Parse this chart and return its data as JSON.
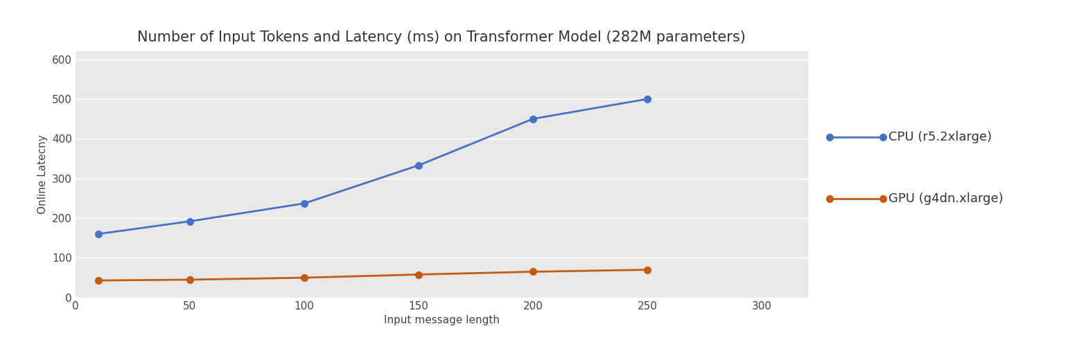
{
  "title": "Number of Input Tokens and Latency (ms) on Transformer Model (282M parameters)",
  "xlabel": "Input message length",
  "ylabel": "Online Latecny",
  "xlim": [
    0,
    320
  ],
  "ylim": [
    0,
    620
  ],
  "xticks": [
    0,
    50,
    100,
    150,
    200,
    250,
    300
  ],
  "yticks": [
    0,
    100,
    200,
    300,
    400,
    500,
    600
  ],
  "cpu_x": [
    10,
    50,
    100,
    150,
    200,
    250
  ],
  "cpu_y": [
    160,
    192,
    237,
    333,
    450,
    500
  ],
  "gpu_x": [
    10,
    50,
    100,
    150,
    200,
    250
  ],
  "gpu_y": [
    43,
    45,
    50,
    58,
    65,
    70
  ],
  "cpu_color": "#4472C4",
  "gpu_color": "#C55A11",
  "cpu_label": "CPU (r5.2xlarge)",
  "gpu_label": "GPU (g4dn.xlarge)",
  "background_color": "#FFFFFF",
  "plot_bg_color": "#E8E8E8",
  "grid_color": "#FFFFFF",
  "title_fontsize": 15,
  "axis_label_fontsize": 11,
  "tick_fontsize": 11,
  "legend_fontsize": 13,
  "line_width": 2.0,
  "marker": "o",
  "marker_size": 7
}
